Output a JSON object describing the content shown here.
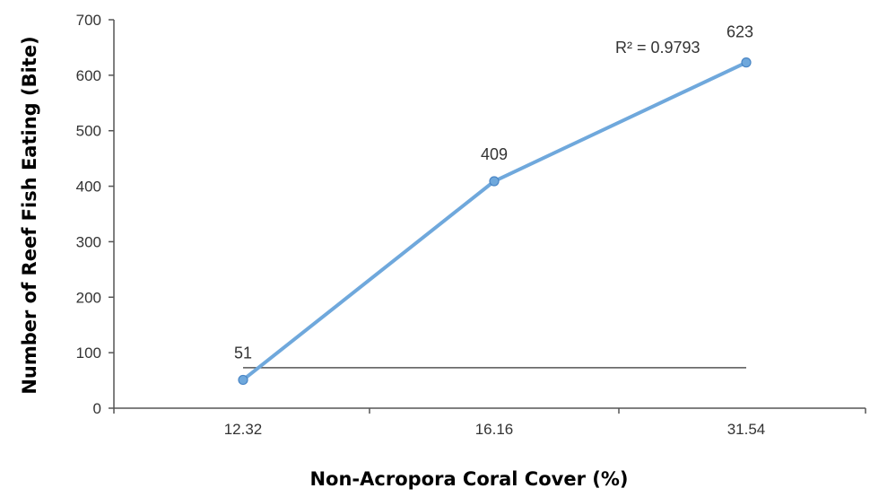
{
  "chart_data": {
    "type": "line",
    "categories": [
      "12.32",
      "16.16",
      "31.54"
    ],
    "series": [
      {
        "values": [
          51,
          409,
          623
        ],
        "data_labels": [
          "51",
          "409",
          "623"
        ],
        "color": "#6fa8dc"
      }
    ],
    "reference_line": {
      "value": 73,
      "color": "#555555"
    },
    "annotation": "R² = 0.9793",
    "xlabel": "Non-Acropora Coral Cover (%)",
    "ylabel": "Number of Reef Fish Eating (Bite)",
    "ylim": [
      0,
      700
    ],
    "yticks": [
      0,
      100,
      200,
      300,
      400,
      500,
      600,
      700
    ],
    "ytick_labels": [
      "0",
      "100",
      "200",
      "300",
      "400",
      "500",
      "600",
      "700"
    ],
    "grid": false,
    "legend": "none"
  }
}
